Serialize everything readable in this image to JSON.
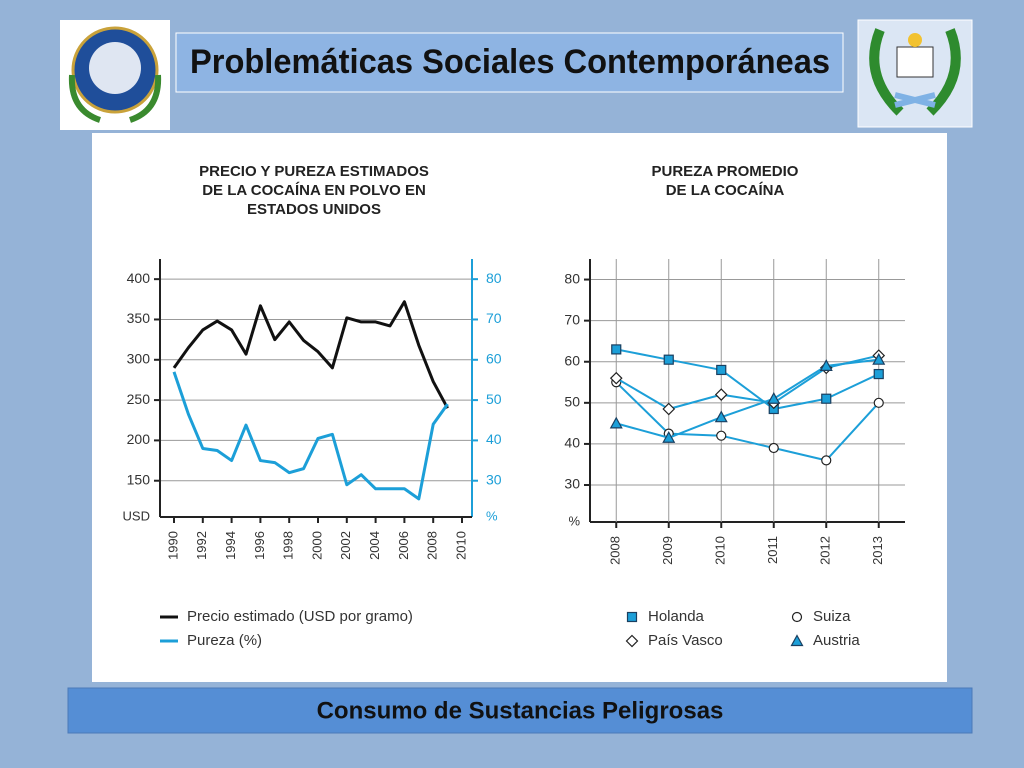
{
  "header": {
    "title": "Problemáticas Sociales Contemporáneas"
  },
  "footer": {
    "title": "Consumo de Sustancias Peligrosas"
  },
  "chart_data": [
    {
      "type": "line",
      "title": [
        "PRECIO Y PUREZA ESTIMADOS",
        "DE LA COCAÍNA EN POLVO EN",
        "ESTADOS UNIDOS"
      ],
      "x": [
        1990,
        1991,
        1992,
        1993,
        1994,
        1995,
        1996,
        1997,
        1998,
        1999,
        2000,
        2001,
        2002,
        2003,
        2004,
        2005,
        2006,
        2007,
        2008,
        2009
      ],
      "xlim": [
        1990,
        2010
      ],
      "xticks": [
        1990,
        1992,
        1994,
        1996,
        1998,
        2000,
        2002,
        2004,
        2006,
        2008,
        2010
      ],
      "ylim": [
        105,
        425
      ],
      "yticks": [
        150,
        200,
        250,
        300,
        350,
        400
      ],
      "y_unit": "USD",
      "y2lim": [
        21,
        85
      ],
      "y2ticks": [
        30,
        40,
        50,
        60,
        70,
        80
      ],
      "y2_unit": "%",
      "y2_color": "#1c9fd8",
      "grid": true,
      "series": [
        {
          "name": "Precio estimado (USD por gramo)",
          "color": "#111111",
          "values": [
            290,
            315,
            337,
            348,
            337,
            307,
            367,
            325,
            347,
            324,
            310,
            290,
            352,
            347,
            347,
            342,
            372,
            318,
            273,
            240
          ]
        },
        {
          "name": "Pureza (%)",
          "color": "#1c9fd8",
          "axis": "y2",
          "values": [
            57,
            46.5,
            38,
            37.5,
            35,
            43.8,
            35,
            34.5,
            32,
            33,
            40.5,
            41.5,
            29,
            31.5,
            28,
            28,
            28,
            25.5,
            44,
            49
          ]
        }
      ]
    },
    {
      "type": "line",
      "title": [
        "PUREZA PROMEDIO",
        "DE LA COCAÍNA"
      ],
      "categories": [
        "2008",
        "2009",
        "2010",
        "2011",
        "2012",
        "2013"
      ],
      "ylim": [
        21,
        85
      ],
      "yticks": [
        30,
        40,
        50,
        60,
        70,
        80
      ],
      "y_unit": "%",
      "grid": true,
      "series": [
        {
          "name": "Holanda",
          "color": "#1c9fd8",
          "marker": "square",
          "marker_fill": "#1c9fd8",
          "values": [
            63,
            60.5,
            58,
            48.5,
            51,
            57
          ]
        },
        {
          "name": "Suiza",
          "color": "#1c9fd8",
          "marker": "circle",
          "marker_fill": "#ffffff",
          "values": [
            55,
            42.5,
            42,
            39,
            36,
            50
          ]
        },
        {
          "name": "País Vasco",
          "color": "#1c9fd8",
          "marker": "diamond",
          "marker_fill": "#ffffff",
          "values": [
            56,
            48.5,
            52,
            50,
            58.5,
            61.5
          ]
        },
        {
          "name": "Austria",
          "color": "#1c9fd8",
          "marker": "triangle",
          "marker_fill": "#1c9fd8",
          "values": [
            45,
            41.5,
            46.5,
            51,
            59,
            60.5
          ]
        }
      ]
    }
  ]
}
